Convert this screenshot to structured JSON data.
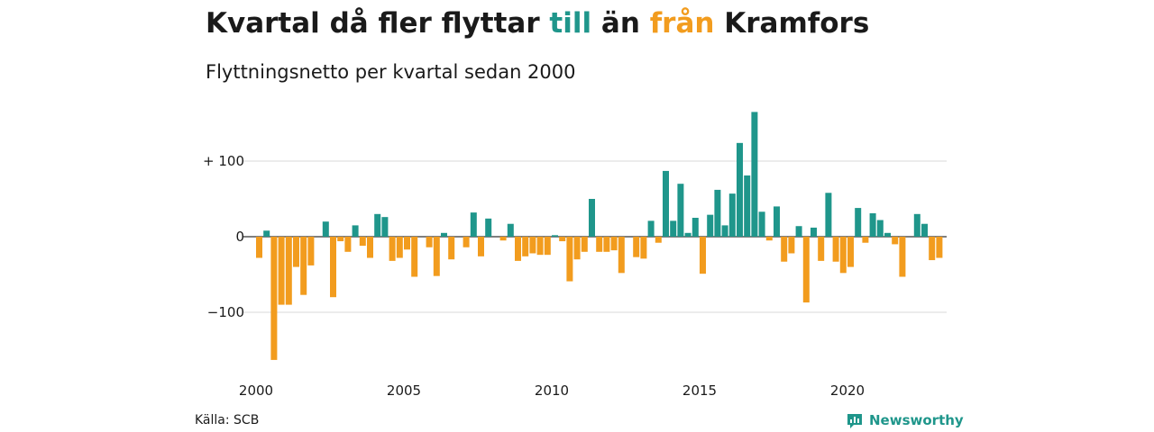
{
  "title": {
    "part1": "Kvartal då fler flyttar ",
    "highlight_pos": "till",
    "part2": " än ",
    "highlight_neg": "från",
    "part3": " Kramfors"
  },
  "subtitle": "Flyttningsnetto per kvartal sedan 2000",
  "source": "Källa: SCB",
  "brand": "Newsworthy",
  "colors": {
    "positive": "#1f968b",
    "negative": "#f29c1e",
    "grid": "#d9d9d9"
  },
  "chart_data": {
    "type": "bar",
    "x_start": 2000,
    "ylim": [
      -165,
      165
    ],
    "y_ticks": [
      {
        "value": 100,
        "label": "+ 100"
      },
      {
        "value": 0,
        "label": "0"
      },
      {
        "value": -100,
        "label": "−100"
      }
    ],
    "x_ticks": [
      "2000",
      "2005",
      "2010",
      "2015",
      "2020"
    ],
    "values": [
      -28,
      8,
      -163,
      -90,
      -90,
      -40,
      -77,
      -38,
      0,
      20,
      -80,
      -6,
      -20,
      15,
      -12,
      -28,
      30,
      26,
      -32,
      -28,
      -17,
      -53,
      0,
      -14,
      -52,
      5,
      -30,
      0,
      -14,
      32,
      -26,
      24,
      0,
      -5,
      17,
      -32,
      -26,
      -22,
      -24,
      -24,
      2,
      -6,
      -59,
      -30,
      -20,
      50,
      -20,
      -20,
      -18,
      -48,
      0,
      -27,
      -29,
      21,
      -8,
      87,
      21,
      70,
      5,
      25,
      -49,
      29,
      62,
      15,
      57,
      124,
      81,
      165,
      33,
      -5,
      40,
      -33,
      -22,
      14,
      -87,
      12,
      -32,
      58,
      -33,
      -48,
      -40,
      38,
      -8,
      31,
      22,
      5,
      -10,
      -53,
      0,
      30,
      17,
      -31,
      -28
    ]
  }
}
